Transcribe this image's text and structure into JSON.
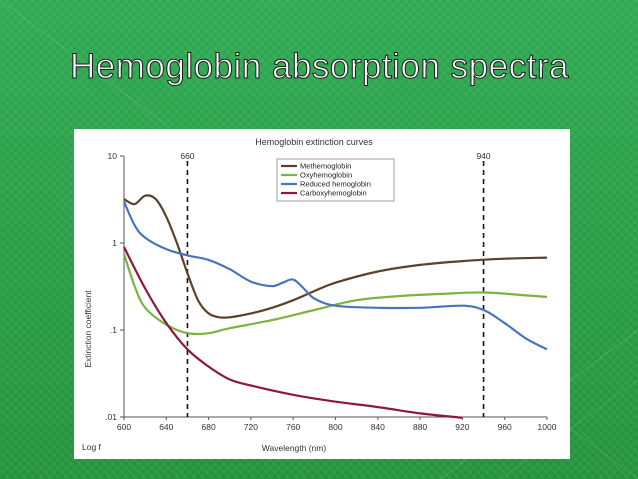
{
  "slide": {
    "title": "Hemoglobin absorption spectra"
  },
  "chart_data": {
    "type": "line",
    "title": "Hemoglobin extinction curves",
    "xlabel": "Wavelength (nm)",
    "ylabel": "Extinction coefficient",
    "y_axis_note": "Log f",
    "xlim": [
      600,
      1000
    ],
    "ylim": [
      0.01,
      10
    ],
    "yscale": "log",
    "x_ticks": [
      "600",
      "640",
      "680",
      "720",
      "760",
      "800",
      "840",
      "880",
      "920",
      "960",
      "1000"
    ],
    "y_ticks": [
      {
        "value": 10,
        "label": "10"
      },
      {
        "value": 1,
        "label": "1"
      },
      {
        "value": 0.1,
        "label": ".1"
      },
      {
        "value": 0.01,
        "label": ".01"
      }
    ],
    "reference_lines": [
      {
        "x": 660,
        "label": "660"
      },
      {
        "x": 940,
        "label": "940"
      }
    ],
    "legend_position": "top-center",
    "series": [
      {
        "name": "Methemoglobin",
        "color": "#5a4128",
        "x": [
          600,
          610,
          620,
          630,
          640,
          650,
          660,
          670,
          680,
          690,
          700,
          720,
          740,
          760,
          780,
          800,
          840,
          880,
          920,
          960,
          1000
        ],
        "y": [
          3.2,
          2.8,
          3.5,
          3.2,
          2.0,
          1.0,
          0.45,
          0.22,
          0.155,
          0.14,
          0.14,
          0.155,
          0.18,
          0.22,
          0.28,
          0.35,
          0.47,
          0.56,
          0.62,
          0.66,
          0.68
        ]
      },
      {
        "name": "Oxyhemoglobin",
        "color": "#7cb342",
        "x": [
          600,
          610,
          620,
          640,
          660,
          680,
          700,
          740,
          780,
          820,
          860,
          900,
          940,
          980,
          1000
        ],
        "y": [
          0.75,
          0.32,
          0.18,
          0.115,
          0.092,
          0.092,
          0.105,
          0.13,
          0.17,
          0.22,
          0.245,
          0.26,
          0.27,
          0.25,
          0.24
        ]
      },
      {
        "name": "Reduced hemoglobin",
        "color": "#4a74b8",
        "x": [
          600,
          610,
          620,
          640,
          660,
          680,
          700,
          720,
          740,
          750,
          760,
          770,
          780,
          800,
          840,
          880,
          920,
          940,
          960,
          980,
          1000
        ],
        "y": [
          3.0,
          1.6,
          1.15,
          0.85,
          0.72,
          0.64,
          0.5,
          0.36,
          0.32,
          0.35,
          0.38,
          0.3,
          0.23,
          0.19,
          0.18,
          0.18,
          0.19,
          0.17,
          0.12,
          0.08,
          0.06
        ]
      },
      {
        "name": "Carboxyhemoglobin",
        "color": "#8b1a3a",
        "x": [
          600,
          620,
          640,
          660,
          680,
          700,
          720,
          760,
          800,
          840,
          880,
          920
        ],
        "y": [
          0.9,
          0.3,
          0.12,
          0.06,
          0.038,
          0.027,
          0.023,
          0.018,
          0.015,
          0.013,
          0.011,
          0.0098
        ]
      }
    ]
  }
}
